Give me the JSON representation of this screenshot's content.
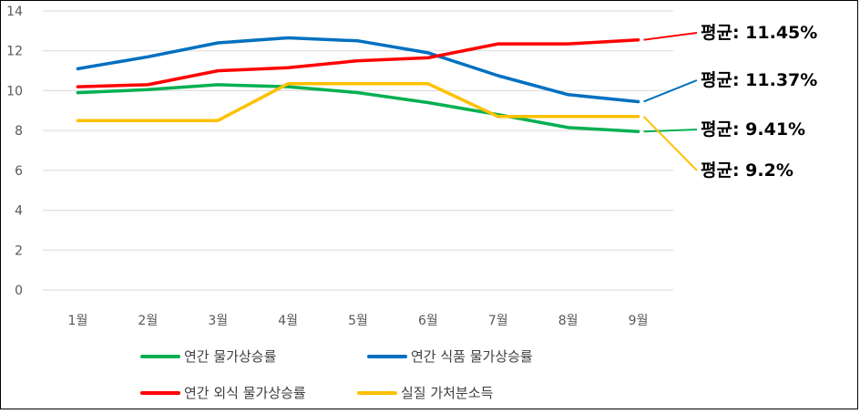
{
  "chart_data": {
    "type": "line",
    "categories": [
      "1월",
      "2월",
      "3월",
      "4월",
      "5월",
      "6월",
      "7월",
      "8월",
      "9월"
    ],
    "ylim": [
      0,
      14
    ],
    "yticks": [
      0,
      2,
      4,
      6,
      8,
      10,
      12,
      14
    ],
    "grid": true,
    "legend_position": "bottom",
    "series": [
      {
        "name": "연간 물가상승률",
        "color": "#00B050",
        "values": [
          9.9,
          10.05,
          10.3,
          10.2,
          9.9,
          9.4,
          8.8,
          8.15,
          7.95
        ]
      },
      {
        "name": "연간 식품 물가상승률",
        "color": "#0070C0",
        "values": [
          11.1,
          11.7,
          12.4,
          12.65,
          12.5,
          11.9,
          10.75,
          9.8,
          9.45
        ]
      },
      {
        "name": "연간 외식 물가상승률",
        "color": "#FF0000",
        "values": [
          10.2,
          10.3,
          11.0,
          11.15,
          11.5,
          11.65,
          12.35,
          12.35,
          12.55
        ]
      },
      {
        "name": "실질 가처분소득",
        "color": "#FFC000",
        "values": [
          8.5,
          8.5,
          8.5,
          10.35,
          10.35,
          10.35,
          8.7,
          8.7,
          8.7
        ]
      }
    ],
    "annotations": [
      {
        "text": "평균: 11.45%",
        "series": "연간 외식 물가상승률"
      },
      {
        "text": "평균: 11.37%",
        "series": "연간 식품 물가상승률"
      },
      {
        "text": "평균: 9.41%",
        "series": "연간 물가상승률"
      },
      {
        "text": "평균: 9.2%",
        "series": "실질 가처분소득"
      }
    ]
  }
}
